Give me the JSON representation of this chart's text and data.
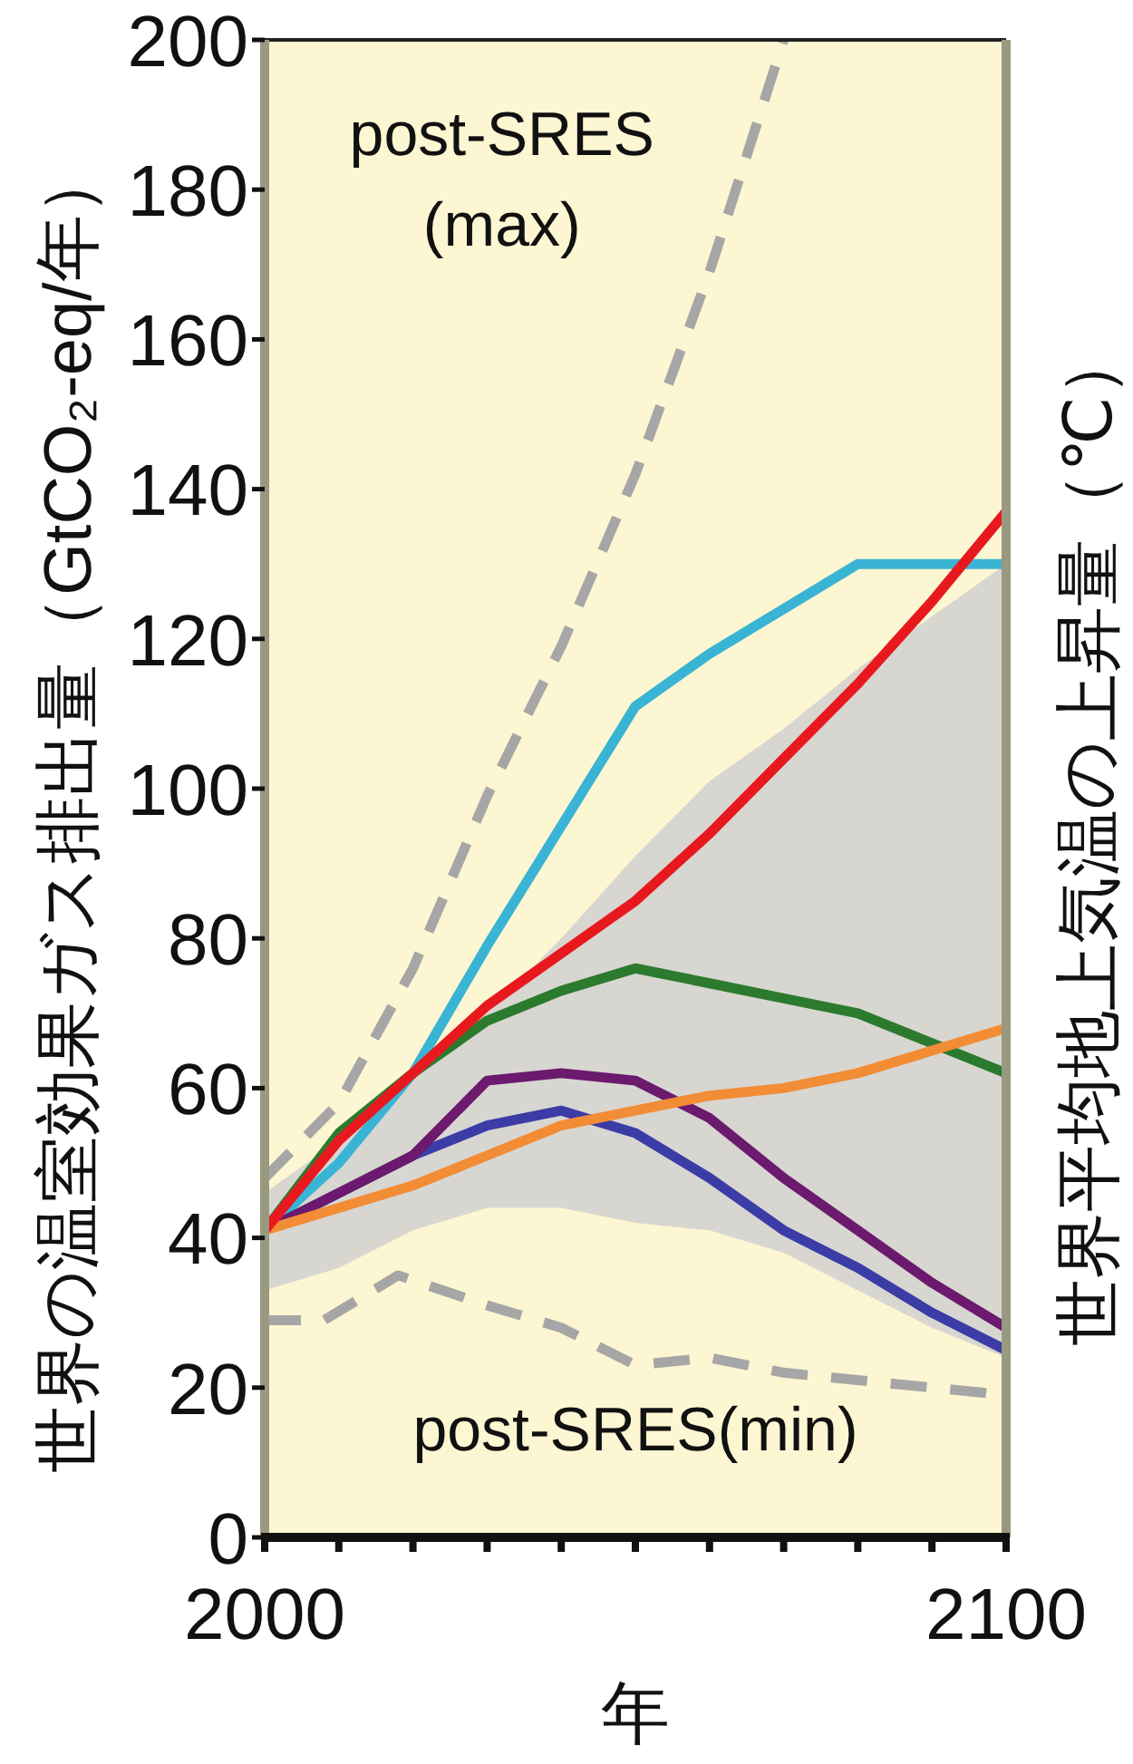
{
  "chart_data": {
    "type": "line",
    "xlabel": "年",
    "ylabel": "世界の温室効果ガス排出量（GtCO₂-eq/年）",
    "y2label": "世界平均地上気温の上昇量（℃）",
    "xlim": [
      2000,
      2100
    ],
    "xticks": [
      2000,
      {
        "value": 2010,
        "label": null
      },
      {
        "value": 2020,
        "label": null
      },
      {
        "value": 2030,
        "label": null
      },
      {
        "value": 2040,
        "label": null
      },
      {
        "value": 2050,
        "label": null
      },
      {
        "value": 2060,
        "label": null
      },
      {
        "value": 2070,
        "label": null
      },
      {
        "value": 2080,
        "label": null
      },
      {
        "value": 2090,
        "label": null
      },
      2100
    ],
    "ylim": [
      0,
      200
    ],
    "yticks": [
      0,
      20,
      40,
      60,
      80,
      100,
      120,
      140,
      160,
      180,
      200
    ],
    "x": [
      2000,
      2010,
      2020,
      2030,
      2040,
      2050,
      2060,
      2070,
      2080,
      2090,
      2100
    ],
    "series": [
      {
        "type": "area",
        "color": "#d8d6d1",
        "values": [
          null,
          null,
          null,
          null,
          null,
          null,
          null,
          null,
          null,
          null,
          null
        ],
        "upper": [
          46,
          53,
          62,
          70,
          80,
          91,
          101,
          108,
          116,
          123,
          130
        ],
        "lower": [
          33,
          36,
          41,
          44,
          44,
          42,
          41,
          38,
          33,
          28,
          24
        ]
      },
      {
        "name": "post-SRES (max)",
        "color": "#a6a6a6",
        "line_style": "dashed",
        "x": [
          2000,
          2010,
          2020,
          2030,
          2040,
          2050,
          2060,
          2070
        ],
        "values": [
          48,
          58,
          76,
          99,
          119,
          142,
          169,
          200
        ]
      },
      {
        "name": "post-SRES(min)",
        "color": "#a6a6a6",
        "line_style": "dashed",
        "x": [
          2000,
          2008,
          2018,
          2030,
          2040,
          2050,
          2060,
          2070,
          2080,
          2090,
          2100
        ],
        "values": [
          29,
          29,
          35,
          31,
          28,
          23,
          24,
          22,
          21,
          20,
          19
        ]
      },
      {
        "color": "#3ab4d4",
        "values": [
          41,
          50,
          62,
          79,
          95,
          111,
          118,
          124,
          130,
          130,
          130
        ]
      },
      {
        "color": "#2b7a2e",
        "values": [
          41,
          54,
          62,
          69,
          73,
          76,
          74,
          72,
          70,
          66,
          62
        ]
      },
      {
        "color": "#3b3ca6",
        "values": [
          41,
          46,
          51,
          55,
          57,
          54,
          48,
          41,
          36,
          30,
          25
        ]
      },
      {
        "color": "#6b1a6e",
        "values": [
          41,
          46,
          51,
          61,
          62,
          61,
          56,
          48,
          41,
          34,
          28
        ]
      },
      {
        "color": "#f28c35",
        "values": [
          41,
          44,
          47,
          51,
          55,
          57,
          59,
          60,
          62,
          65,
          68
        ]
      },
      {
        "color": "#e8191e",
        "values": [
          41,
          53,
          62,
          71,
          78,
          85,
          94,
          104,
          114,
          125,
          137
        ]
      }
    ]
  }
}
